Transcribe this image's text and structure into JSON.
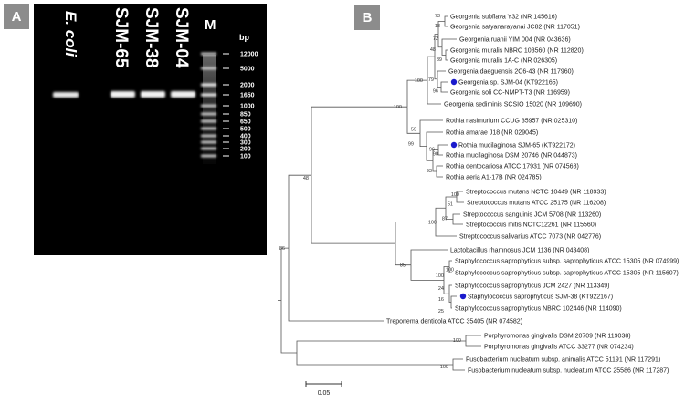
{
  "panel_a": {
    "label": "A",
    "lanes": [
      "E. coli",
      "",
      "SJM-65",
      "SJM-38",
      "SJM-04",
      "M"
    ],
    "unit": "bp",
    "ladder": [
      "12000",
      "5000",
      "2000",
      "1650",
      "1000",
      "850",
      "650",
      "500",
      "400",
      "300",
      "200",
      "100"
    ]
  },
  "panel_b": {
    "label": "B",
    "taxa": [
      "Georgenia subflava Y32 (NR 145616)",
      "Georgenia satyanarayanai JC82 (NR 117051)",
      "Georgenia ruanii YIM 004 (NR 043636)",
      "Georgenia muralis NBRC 103560 (NR 112820)",
      "Georgenia muralis 1A-C (NR 026305)",
      "Georgenia daeguensis 2C6-43 (NR 117960)",
      "Georgenia sp. SJM-04 (KT922165)",
      "Georgenia soli CC-NMPT-T3 (NR 116959)",
      "Georgenia sediminis SCSIO 15020 (NR 109690)",
      "Rothia nasimurium CCUG 35957 (NR 025310)",
      "Rothia amarae J18 (NR 029045)",
      "Rothia mucilaginosa SJM-65 (KT922172)",
      "Rothia mucilaginosa DSM 20746 (NR 044873)",
      "Rothia dentocariosa ATCC 17931 (NR 074568)",
      "Rothia aeria A1-17B (NR 024785)",
      "Streptococcus mutans NCTC 10449 (NR 118933)",
      "Streptococcus mutans ATCC 25175 (NR 116208)",
      "Streptococcus sanguinis JCM 5708 (NR 113260)",
      "Streptococcus mitis NCTC12261 (NR 115560)",
      "Streptococcus salivarius ATCC 7073 (NR 042776)",
      "Lactobacillus rhamnosus JCM 1136 (NR 043408)",
      "Staphylococcus saprophyticus subsp. saprophyticus ATCC 15305 (NR 074999)",
      "Staphylococcus saprophyticus subsp. saprophyticus ATCC 15305 (NR 115607)",
      "Staphylococcus saprophyticus JCM 2427 (NR 113349)",
      "Staphylococcus saprophyticus SJM-38 (KT922167)",
      "Staphylococcus saprophyticus NBRC 102446 (NR 114090)",
      "Treponema denticola ATCC 35405 (NR 074582)",
      "Porphyromonas gingivalis DSM 20709 (NR 119038)",
      "Porphyromonas gingivalis ATCC 33277 (NR 074234)",
      "Fusobacterium nucleatum subsp. animalis ATCC 51191 (NR 117291)",
      "Fusobacterium nucleatum subsp. nucleatum ATCC 25586 (NR 117287)"
    ],
    "bootstrap": [
      "73",
      "18",
      "72",
      "48",
      "89",
      "79",
      "96",
      "100",
      "100",
      "59",
      "99",
      "96",
      "90",
      "93",
      "100",
      "51",
      "100",
      "87",
      "100",
      "85",
      "100",
      "24",
      "16",
      "25",
      "100",
      "100",
      "48",
      "86"
    ],
    "scale_label": "0.05",
    "marker_color": "#1a1acc"
  }
}
